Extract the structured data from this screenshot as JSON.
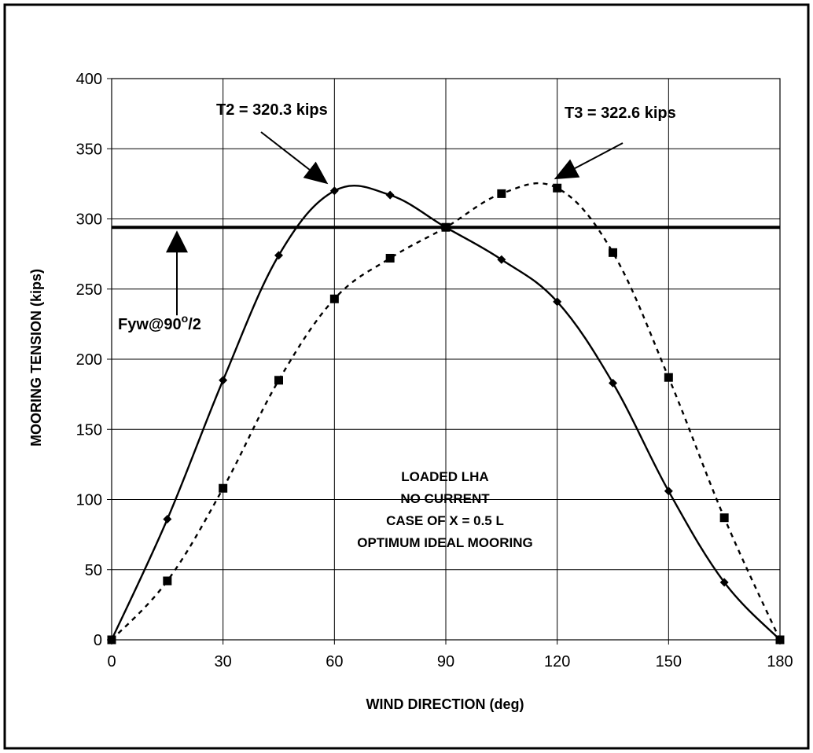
{
  "chart_data": {
    "type": "line",
    "xlabel": "WIND DIRECTION (deg)",
    "ylabel": "MOORING TENSION (kips)",
    "xlim": [
      0,
      180
    ],
    "ylim": [
      0,
      400
    ],
    "xticks": [
      0,
      30,
      60,
      90,
      120,
      150,
      180
    ],
    "yticks": [
      0,
      50,
      100,
      150,
      200,
      250,
      300,
      350,
      400
    ],
    "grid": true,
    "legend": "none",
    "series": [
      {
        "style": "solid",
        "marker": "diamond",
        "color": "#000000",
        "x": [
          0,
          15,
          30,
          45,
          60,
          75,
          90,
          105,
          120,
          135,
          150,
          165,
          180
        ],
        "values": [
          0,
          86,
          185,
          274,
          320,
          317,
          294,
          271,
          241,
          183,
          106,
          41,
          0
        ]
      },
      {
        "style": "dotted",
        "marker": "square",
        "color": "#000000",
        "x": [
          0,
          15,
          30,
          45,
          60,
          75,
          90,
          105,
          120,
          135,
          150,
          165,
          180
        ],
        "values": [
          0,
          42,
          108,
          185,
          243,
          272,
          294,
          318,
          322,
          276,
          187,
          87,
          0
        ]
      }
    ],
    "reference_line": {
      "y": 294,
      "label_main": "Fyw@90",
      "label_sup": "o",
      "label_tail": "/2"
    },
    "annotations": [
      {
        "text": "T2 = 320.3 kips",
        "x": 60,
        "y": 320.3
      },
      {
        "text": "T3 = 322.6 kips",
        "x": 120,
        "y": 322.6
      }
    ],
    "notes": [
      "LOADED LHA",
      "NO CURRENT",
      "CASE OF X = 0.5 L",
      "OPTIMUM IDEAL MOORING"
    ]
  }
}
